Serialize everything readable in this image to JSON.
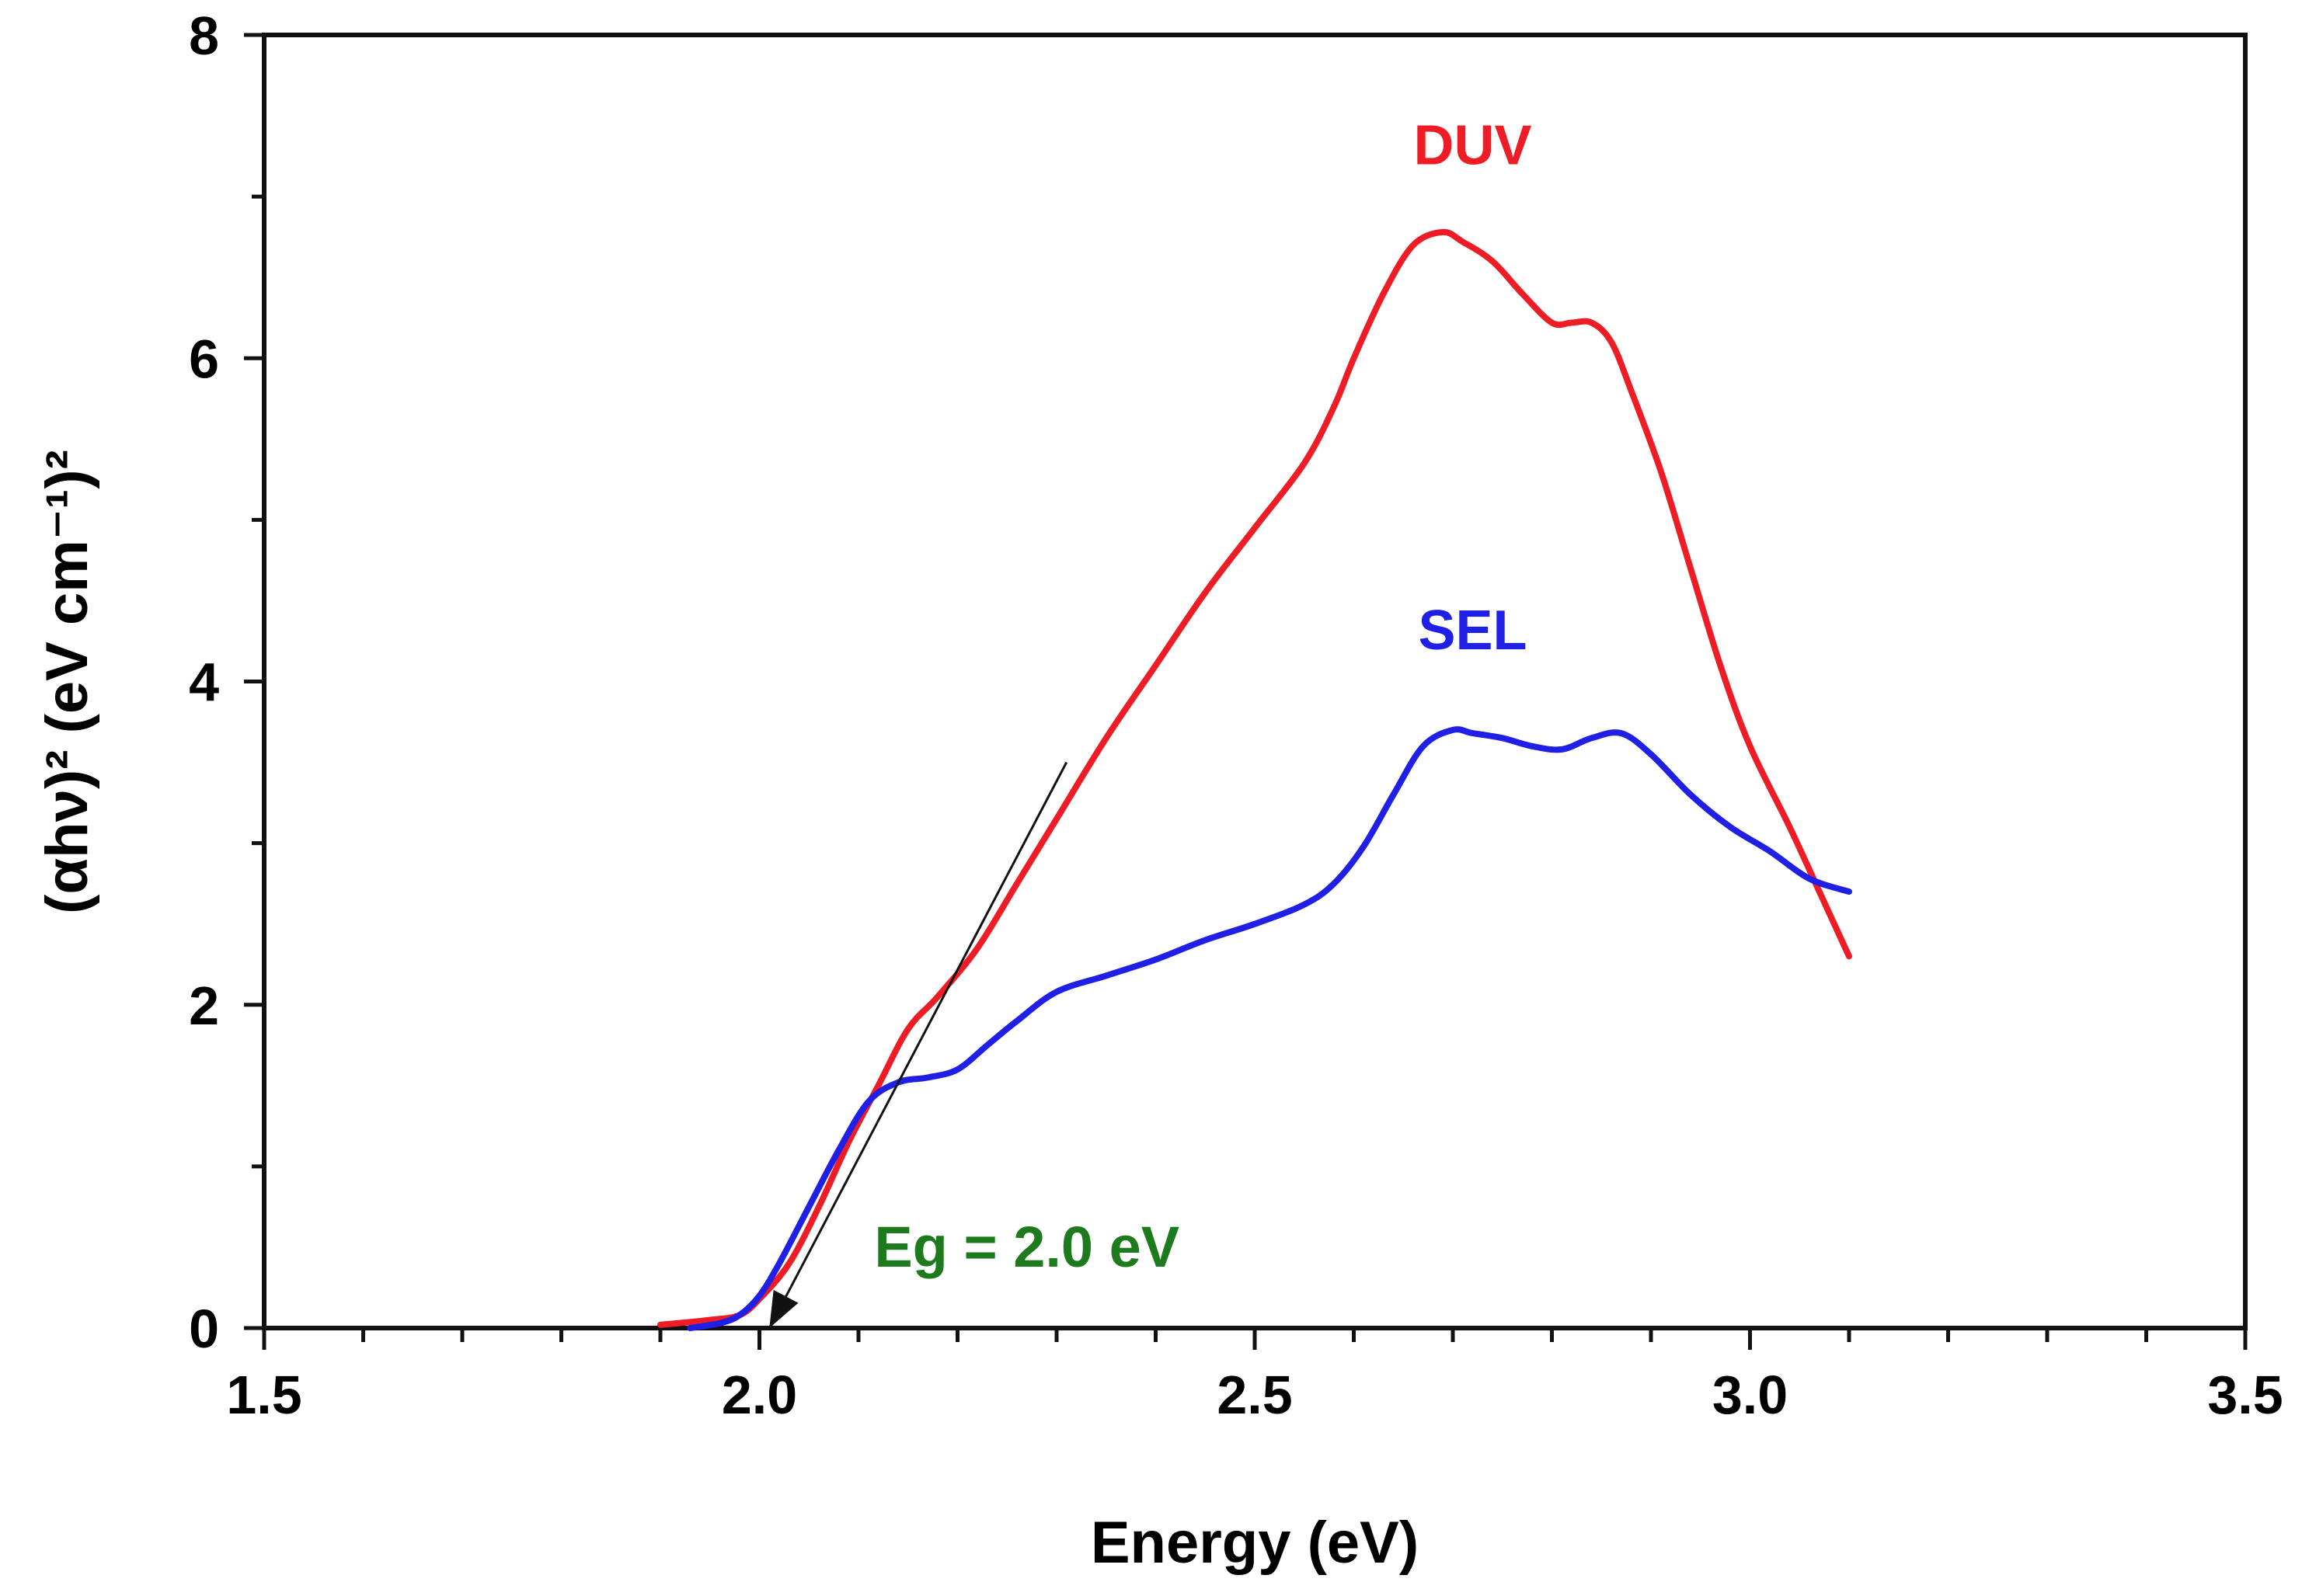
{
  "chart_data": {
    "type": "line",
    "title": "",
    "xlabel": "Energy (eV)",
    "ylabel": "(αhν)² (eV cm⁻¹)²",
    "xlim": [
      1.5,
      3.5
    ],
    "ylim": [
      0,
      8
    ],
    "x_ticks": [
      "1.5",
      "2.0",
      "2.5",
      "3.0",
      "3.5"
    ],
    "y_ticks": [
      "0",
      "2",
      "4",
      "6",
      "8"
    ],
    "grid": false,
    "series": [
      {
        "name": "DUV",
        "color": "#ee1c24",
        "x": [
          1.9,
          1.95,
          1.98,
          2.0,
          2.03,
          2.06,
          2.09,
          2.12,
          2.15,
          2.18,
          2.22,
          2.26,
          2.3,
          2.35,
          2.4,
          2.45,
          2.5,
          2.55,
          2.58,
          2.6,
          2.63,
          2.66,
          2.69,
          2.71,
          2.74,
          2.77,
          2.8,
          2.82,
          2.84,
          2.86,
          2.88,
          2.91,
          2.94,
          2.97,
          3.0,
          3.04,
          3.07,
          3.1
        ],
        "values": [
          0.02,
          0.05,
          0.08,
          0.18,
          0.4,
          0.75,
          1.15,
          1.5,
          1.85,
          2.05,
          2.35,
          2.75,
          3.15,
          3.65,
          4.1,
          4.55,
          4.95,
          5.35,
          5.7,
          6.0,
          6.4,
          6.7,
          6.78,
          6.72,
          6.6,
          6.4,
          6.22,
          6.22,
          6.22,
          6.1,
          5.8,
          5.3,
          4.7,
          4.1,
          3.6,
          3.1,
          2.7,
          2.3
        ]
      },
      {
        "name": "SEL",
        "color": "#1f1fe6",
        "x": [
          1.93,
          1.96,
          1.98,
          2.0,
          2.02,
          2.05,
          2.08,
          2.11,
          2.14,
          2.17,
          2.2,
          2.23,
          2.26,
          2.3,
          2.35,
          2.4,
          2.45,
          2.5,
          2.55,
          2.58,
          2.61,
          2.64,
          2.67,
          2.7,
          2.72,
          2.75,
          2.78,
          2.81,
          2.84,
          2.87,
          2.9,
          2.94,
          2.98,
          3.02,
          3.06,
          3.1
        ],
        "values": [
          0.0,
          0.03,
          0.08,
          0.2,
          0.4,
          0.75,
          1.1,
          1.4,
          1.52,
          1.55,
          1.6,
          1.75,
          1.9,
          2.08,
          2.18,
          2.28,
          2.4,
          2.5,
          2.62,
          2.75,
          2.98,
          3.3,
          3.6,
          3.7,
          3.68,
          3.65,
          3.6,
          3.58,
          3.65,
          3.68,
          3.55,
          3.3,
          3.1,
          2.95,
          2.78,
          2.7
        ]
      }
    ],
    "annotations": [
      {
        "text": "DUV",
        "color": "#ee1c24",
        "x": 2.72,
        "y": 7.2
      },
      {
        "text": "SEL",
        "color": "#1f1fe6",
        "x": 2.72,
        "y": 4.2
      },
      {
        "text": "Eg = 2.0 eV",
        "color": "#1d7a1d",
        "x": 2.27,
        "y": 0.38
      }
    ],
    "tangent_line": {
      "x1": 2.01,
      "y1": 0.0,
      "x2": 2.31,
      "y2": 3.5,
      "color": "#111111"
    }
  }
}
